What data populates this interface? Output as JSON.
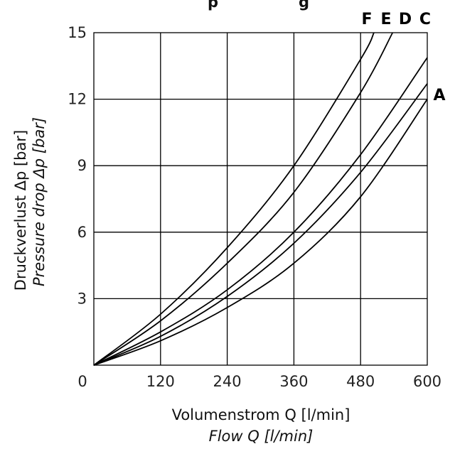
{
  "chart_data": {
    "type": "line",
    "title_partial": "p",
    "title_partial_2": "g",
    "xlabel": "Volumenstrom Q [l/min]",
    "xlabel_secondary": "Flow Q [l/min]",
    "ylabel": "Druckverlust Δp [bar]",
    "ylabel_secondary": "Pressure drop Δp [bar]",
    "xlim": [
      0,
      600
    ],
    "ylim": [
      0,
      15
    ],
    "xticks": [
      0,
      120,
      240,
      360,
      480,
      600
    ],
    "yticks": [
      3,
      6,
      9,
      12,
      15
    ],
    "grid": true,
    "series": [
      {
        "name": "F",
        "x": [
          0,
          120,
          240,
          360,
          480
        ],
        "y": [
          0,
          2.3,
          5.3,
          9.0,
          13.8
        ]
      },
      {
        "name": "E",
        "x": [
          0,
          120,
          240,
          360,
          480
        ],
        "y": [
          0,
          2.0,
          4.6,
          7.8,
          12.3
        ]
      },
      {
        "name": "D",
        "x": [
          0,
          120,
          240,
          360,
          480
        ],
        "y": [
          0,
          1.5,
          3.4,
          6.0,
          9.5
        ]
      },
      {
        "name": "C",
        "x": [
          0,
          120,
          240,
          360,
          480
        ],
        "y": [
          0,
          1.3,
          3.1,
          5.5,
          8.7
        ]
      },
      {
        "name": "A",
        "x": [
          0,
          120,
          240,
          360,
          480,
          600
        ],
        "y": [
          0,
          1.1,
          2.6,
          4.6,
          7.6,
          12.0
        ]
      }
    ]
  }
}
